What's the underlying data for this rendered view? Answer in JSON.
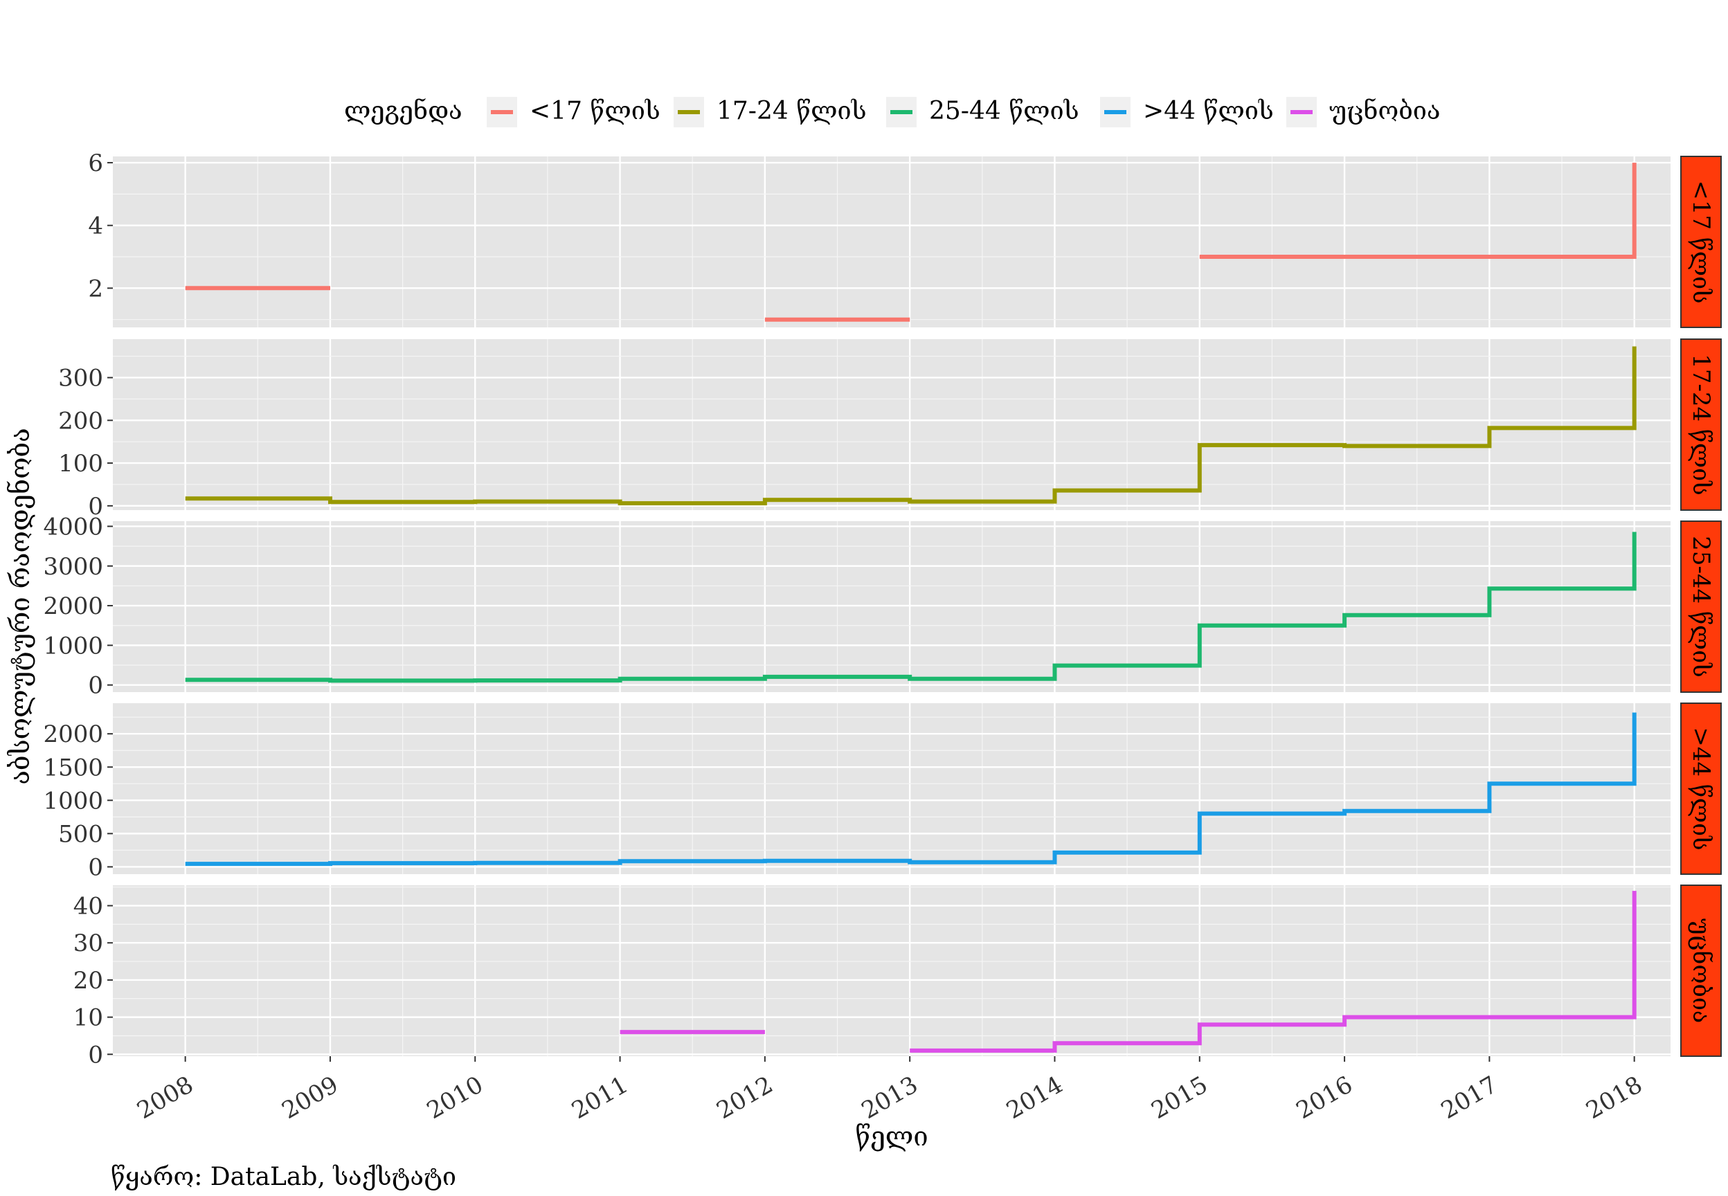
{
  "chart_data": {
    "type": "line",
    "subtype": "step",
    "xlabel": "წელი",
    "ylabel": "აბსოლუტური რაოდენობა",
    "caption": "წყარო: DataLab, საქსტატი",
    "legend": {
      "title": "ლეგენდა",
      "position": "top",
      "entries": [
        "<17 წლის",
        "17-24 წლის",
        "25-44 წლის",
        ">44 წლის",
        "უცნობია"
      ]
    },
    "x_ticks": [
      2008,
      2009,
      2010,
      2011,
      2012,
      2013,
      2014,
      2015,
      2016,
      2017,
      2018
    ],
    "xlim": [
      2007.5,
      2018.25
    ],
    "grid": true,
    "panel_background": "#e5e5e5",
    "strip_fill": "#ff3a0a",
    "panels": [
      {
        "strip": "<17 წლის",
        "color": "#f8766d",
        "ylim": [
          0.75,
          6.2
        ],
        "y_ticks": [
          2,
          4,
          6
        ],
        "segments": [
          [
            [
              2008,
              2
            ],
            [
              2009,
              2
            ]
          ],
          [
            [
              2012,
              1
            ],
            [
              2013,
              1
            ]
          ],
          [
            [
              2015,
              3
            ],
            [
              2016,
              3
            ],
            [
              2017,
              3
            ],
            [
              2018,
              3
            ],
            [
              2018,
              6
            ]
          ]
        ]
      },
      {
        "strip": "17-24 წლის",
        "color": "#999900",
        "ylim": [
          -10,
          390
        ],
        "y_ticks": [
          0,
          100,
          200,
          300
        ],
        "segments": [
          [
            [
              2008,
              17
            ],
            [
              2009,
              17
            ],
            [
              2009,
              9
            ],
            [
              2010,
              9
            ],
            [
              2010,
              10
            ],
            [
              2011,
              10
            ],
            [
              2011,
              6
            ],
            [
              2012,
              6
            ],
            [
              2012,
              14
            ],
            [
              2013,
              14
            ],
            [
              2013,
              10
            ],
            [
              2014,
              10
            ],
            [
              2014,
              36
            ],
            [
              2015,
              36
            ],
            [
              2015,
              142
            ],
            [
              2016,
              142
            ],
            [
              2016,
              140
            ],
            [
              2017,
              140
            ],
            [
              2017,
              182
            ],
            [
              2018,
              182
            ],
            [
              2018,
              373
            ]
          ]
        ]
      },
      {
        "strip": "25-44 წლის",
        "color": "#1db86e",
        "ylim": [
          -180,
          4130
        ],
        "y_ticks": [
          0,
          1000,
          2000,
          3000,
          4000
        ],
        "segments": [
          [
            [
              2008,
              130
            ],
            [
              2009,
              130
            ],
            [
              2009,
              110
            ],
            [
              2010,
              110
            ],
            [
              2010,
              115
            ],
            [
              2011,
              115
            ],
            [
              2011,
              155
            ],
            [
              2012,
              155
            ],
            [
              2012,
              205
            ],
            [
              2013,
              205
            ],
            [
              2013,
              155
            ],
            [
              2014,
              155
            ],
            [
              2014,
              490
            ],
            [
              2015,
              490
            ],
            [
              2015,
              1500
            ],
            [
              2016,
              1500
            ],
            [
              2016,
              1760
            ],
            [
              2017,
              1760
            ],
            [
              2017,
              2430
            ],
            [
              2018,
              2430
            ],
            [
              2018,
              3860
            ]
          ]
        ]
      },
      {
        "strip": ">44 წლის",
        "color": "#1a9de6",
        "ylim": [
          -110,
          2460
        ],
        "y_ticks": [
          0,
          500,
          1000,
          1500,
          2000
        ],
        "segments": [
          [
            [
              2008,
              45
            ],
            [
              2009,
              45
            ],
            [
              2009,
              55
            ],
            [
              2010,
              55
            ],
            [
              2010,
              60
            ],
            [
              2011,
              60
            ],
            [
              2011,
              85
            ],
            [
              2012,
              85
            ],
            [
              2012,
              90
            ],
            [
              2013,
              90
            ],
            [
              2013,
              70
            ],
            [
              2014,
              70
            ],
            [
              2014,
              215
            ],
            [
              2015,
              215
            ],
            [
              2015,
              800
            ],
            [
              2016,
              800
            ],
            [
              2016,
              840
            ],
            [
              2017,
              840
            ],
            [
              2017,
              1250
            ],
            [
              2018,
              1250
            ],
            [
              2018,
              2320
            ]
          ]
        ]
      },
      {
        "strip": "უცნობია",
        "color": "#dc4fe8",
        "ylim": [
          -0.5,
          45.5
        ],
        "y_ticks": [
          0,
          10,
          20,
          30,
          40
        ],
        "segments": [
          [
            [
              2011,
              6
            ],
            [
              2012,
              6
            ]
          ],
          [
            [
              2013,
              1
            ],
            [
              2014,
              1
            ],
            [
              2014,
              3
            ],
            [
              2015,
              3
            ],
            [
              2015,
              8
            ],
            [
              2016,
              8
            ],
            [
              2016,
              10
            ],
            [
              2017,
              10
            ],
            [
              2018,
              10
            ],
            [
              2018,
              44
            ]
          ]
        ]
      }
    ]
  }
}
